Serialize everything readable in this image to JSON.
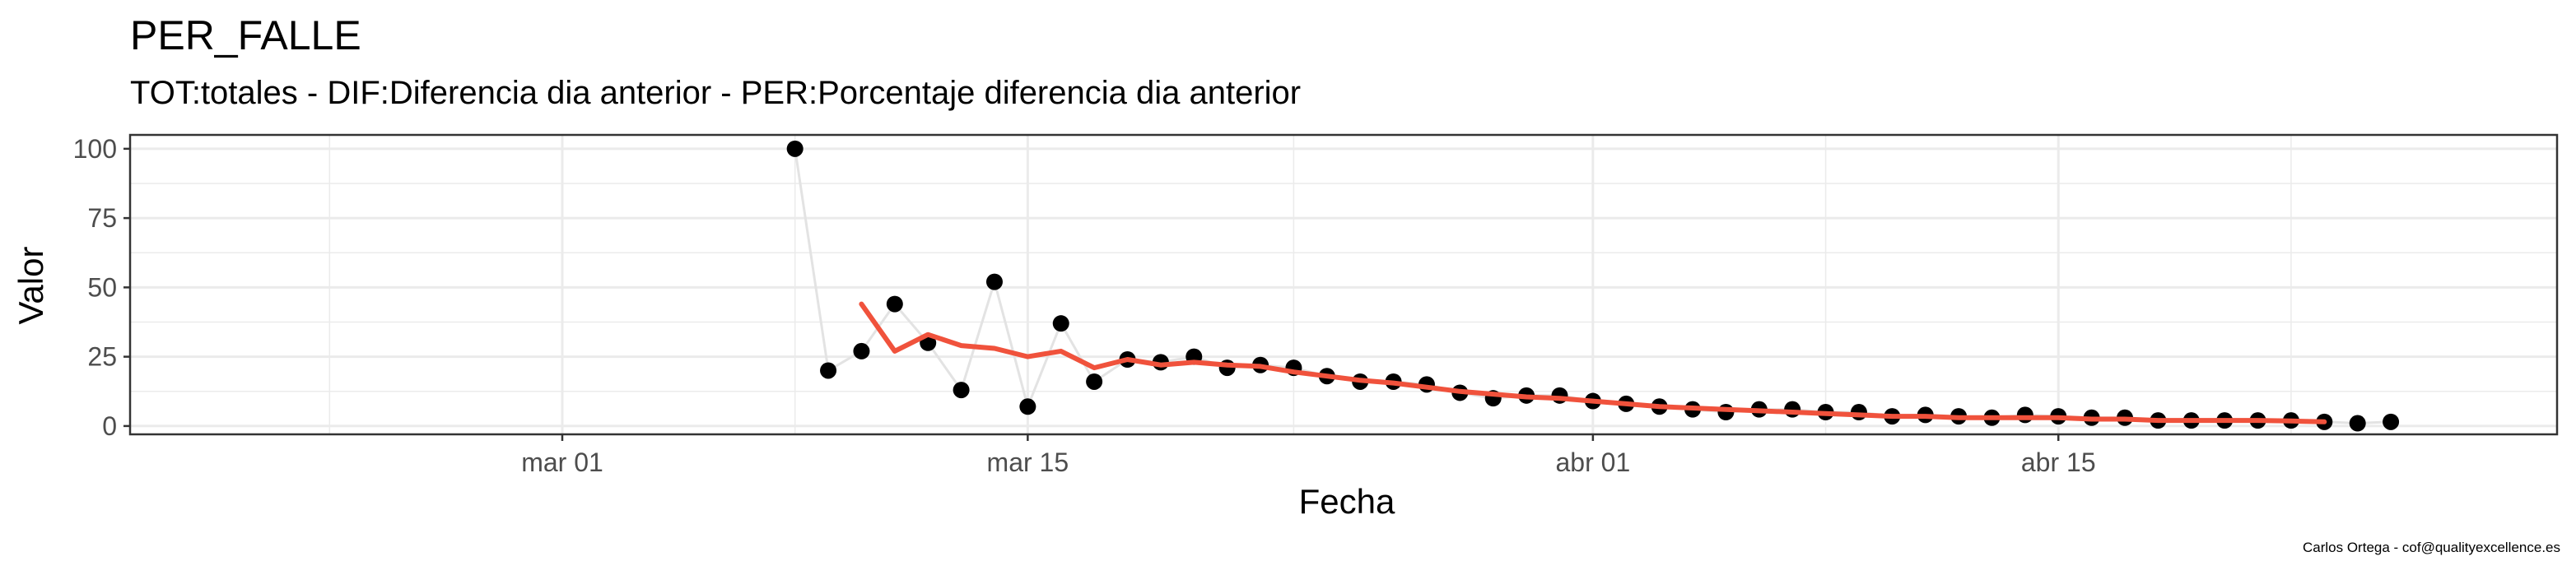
{
  "chart_data": {
    "type": "scatter",
    "title": "PER_FALLE",
    "subtitle": "TOT:totales - DIF:Diferencia dia anterior - PER:Porcentaje diferencia dia anterior",
    "xlabel": "Fecha",
    "ylabel": "Valor",
    "caption": "Carlos Ortega - cof@qualityexcellence.es",
    "xlim": [
      "2020-02-17",
      "2020-04-30"
    ],
    "ylim": [
      -3,
      105
    ],
    "x_ticks": [
      {
        "date": "2020-03-01",
        "label": "mar 01"
      },
      {
        "date": "2020-03-15",
        "label": "mar 15"
      },
      {
        "date": "2020-04-01",
        "label": "abr 01"
      },
      {
        "date": "2020-04-15",
        "label": "abr 15"
      }
    ],
    "x_minor_breaks": [
      "2020-02-23",
      "2020-03-08",
      "2020-03-23",
      "2020-04-08",
      "2020-04-22"
    ],
    "y_ticks": [
      0,
      25,
      50,
      75,
      100
    ],
    "grid": true,
    "legend": "none",
    "colors": {
      "points": "#000000",
      "connector": "#e3e3e3",
      "trend": "#f0523c",
      "grid": "#ebebeb",
      "panel_border": "#333333"
    },
    "series": [
      {
        "kind": "points",
        "x": [
          "2020-03-08",
          "2020-03-09",
          "2020-03-10",
          "2020-03-11",
          "2020-03-12",
          "2020-03-13",
          "2020-03-14",
          "2020-03-15",
          "2020-03-16",
          "2020-03-17",
          "2020-03-18",
          "2020-03-19",
          "2020-03-20",
          "2020-03-21",
          "2020-03-22",
          "2020-03-23",
          "2020-03-24",
          "2020-03-25",
          "2020-03-26",
          "2020-03-27",
          "2020-03-28",
          "2020-03-29",
          "2020-03-30",
          "2020-03-31",
          "2020-04-01",
          "2020-04-02",
          "2020-04-03",
          "2020-04-04",
          "2020-04-05",
          "2020-04-06",
          "2020-04-07",
          "2020-04-08",
          "2020-04-09",
          "2020-04-10",
          "2020-04-11",
          "2020-04-12",
          "2020-04-13",
          "2020-04-14",
          "2020-04-15",
          "2020-04-16",
          "2020-04-17",
          "2020-04-18",
          "2020-04-19",
          "2020-04-20",
          "2020-04-21",
          "2020-04-22",
          "2020-04-23",
          "2020-04-24",
          "2020-04-25"
        ],
        "values": [
          100,
          20,
          27,
          44,
          30,
          13,
          52,
          7,
          37,
          16,
          24,
          23,
          25,
          21,
          22,
          21,
          18,
          16,
          16,
          15,
          12,
          10,
          11,
          11,
          9,
          8,
          7,
          6,
          5,
          6,
          6,
          5,
          5,
          3.5,
          4,
          3.5,
          3,
          4,
          3.5,
          3,
          3,
          2,
          2,
          2,
          2,
          2,
          1.5,
          1,
          1.5
        ]
      },
      {
        "kind": "trend",
        "x": [
          "2020-03-10",
          "2020-03-11",
          "2020-03-12",
          "2020-03-13",
          "2020-03-14",
          "2020-03-15",
          "2020-03-16",
          "2020-03-17",
          "2020-03-18",
          "2020-03-19",
          "2020-03-20",
          "2020-03-21",
          "2020-03-22",
          "2020-03-23",
          "2020-03-24",
          "2020-03-25",
          "2020-03-26",
          "2020-03-27",
          "2020-03-28",
          "2020-03-29",
          "2020-03-30",
          "2020-03-31",
          "2020-04-01",
          "2020-04-02",
          "2020-04-03",
          "2020-04-04",
          "2020-04-05",
          "2020-04-06",
          "2020-04-07",
          "2020-04-08",
          "2020-04-09",
          "2020-04-10",
          "2020-04-11",
          "2020-04-12",
          "2020-04-13",
          "2020-04-14",
          "2020-04-15",
          "2020-04-16",
          "2020-04-17",
          "2020-04-18",
          "2020-04-19",
          "2020-04-20",
          "2020-04-21",
          "2020-04-22",
          "2020-04-23"
        ],
        "values": [
          44,
          27,
          33,
          29,
          28,
          25,
          27,
          21,
          24,
          22,
          23,
          22,
          21.5,
          19.5,
          18,
          16.5,
          15.5,
          14,
          12.5,
          11.5,
          10.5,
          10,
          9,
          8,
          7,
          6.5,
          6,
          5.5,
          5,
          4.5,
          4,
          3.5,
          3.5,
          3,
          3,
          3,
          3,
          2.5,
          2.5,
          2,
          2,
          2,
          2,
          1.8,
          1.5
        ]
      }
    ]
  }
}
